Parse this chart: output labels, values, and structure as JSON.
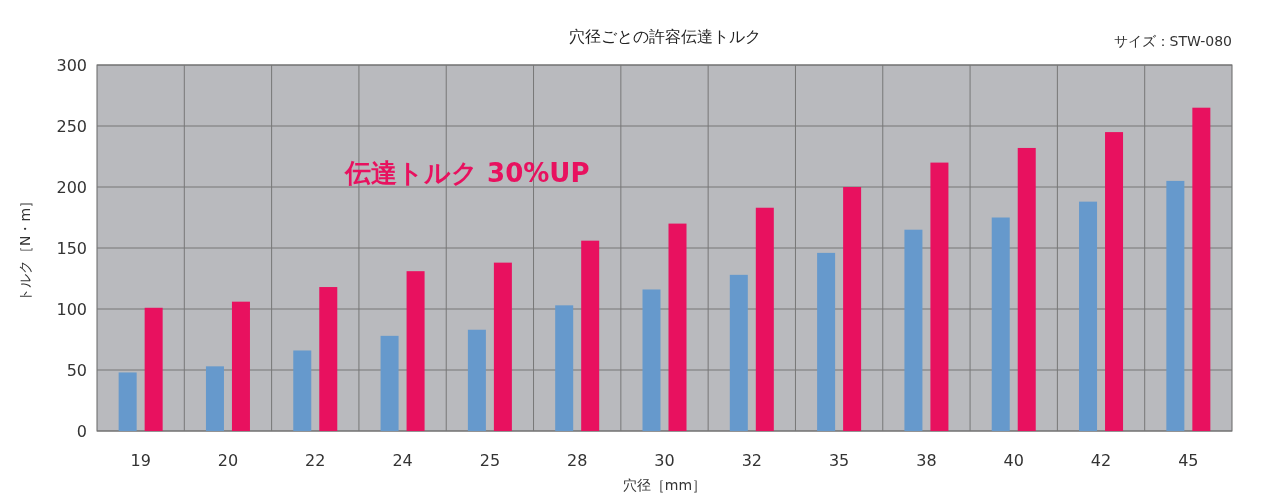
{
  "chart_data": {
    "type": "bar",
    "title": "穴径ごとの許容伝達トルク",
    "subtitle": "サイズ：STW-080",
    "xlabel": "穴径［mm］",
    "ylabel": "トルク［N・m］",
    "categories": [
      "19",
      "20",
      "22",
      "24",
      "25",
      "28",
      "30",
      "32",
      "35",
      "38",
      "40",
      "42",
      "45"
    ],
    "series": [
      {
        "color": "#6699cc",
        "values": [
          48,
          53,
          66,
          78,
          83,
          103,
          116,
          128,
          146,
          165,
          175,
          188,
          205
        ]
      },
      {
        "color": "#e8115f",
        "values": [
          101,
          106,
          118,
          131,
          138,
          156,
          170,
          183,
          200,
          220,
          232,
          245,
          265
        ]
      }
    ],
    "ylim": [
      0,
      300
    ],
    "yticks": [
      0,
      50,
      100,
      150,
      200,
      250,
      300
    ],
    "grid": true,
    "annotations": [
      "伝達トルク 30%UP"
    ]
  }
}
